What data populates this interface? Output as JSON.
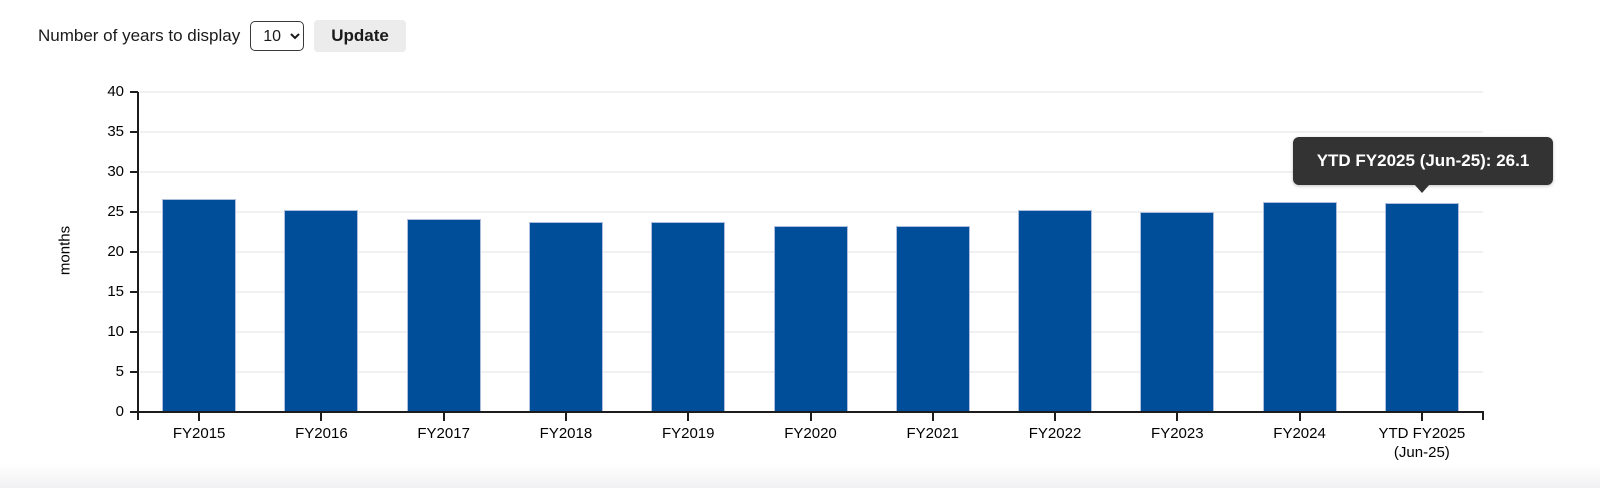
{
  "controls": {
    "label": "Number of years to display",
    "years_value": "10",
    "update_label": "Update"
  },
  "tooltip": {
    "text": "YTD FY2025 (Jun-25): 26.1"
  },
  "chart_data": {
    "type": "bar",
    "categories": [
      "FY2015",
      "FY2016",
      "FY2017",
      "FY2018",
      "FY2019",
      "FY2020",
      "FY2021",
      "FY2022",
      "FY2023",
      "FY2024",
      "YTD FY2025\n(Jun-25)"
    ],
    "values": [
      26.6,
      25.2,
      24.1,
      23.7,
      23.7,
      23.2,
      23.2,
      25.2,
      25.0,
      26.2,
      26.1
    ],
    "title": "",
    "xlabel": "",
    "ylabel": "months",
    "ylim": [
      0,
      40
    ],
    "ytick_step": 5,
    "grid": "horizontal",
    "legend": "none",
    "bar_color": "#004E9A",
    "bar_border_color": "#AFBEDC",
    "hover_tooltip": {
      "target_index": 10,
      "text": "YTD FY2025 (Jun-25): 26.1"
    }
  }
}
